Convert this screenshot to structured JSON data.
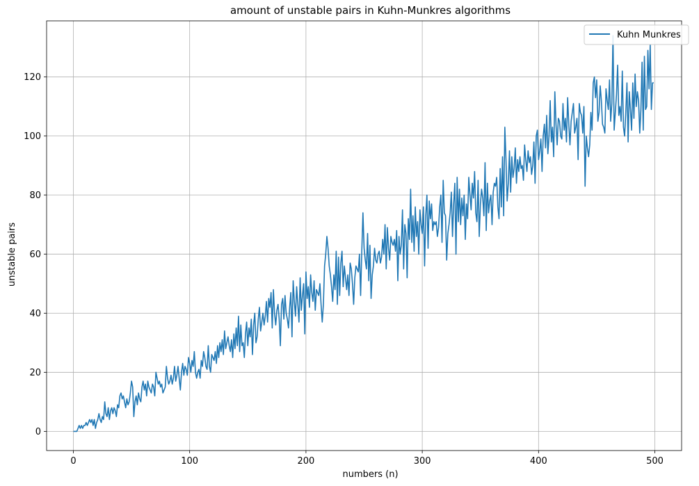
{
  "chart_data": {
    "type": "line",
    "title": "amount of unstable pairs in Kuhn-Munkres algorithms",
    "xlabel": "numbers (n)",
    "ylabel": "unstable pairs",
    "xlim": [
      -23,
      523
    ],
    "ylim": [
      -6.5,
      139
    ],
    "xticks": [
      0,
      100,
      200,
      300,
      400,
      500
    ],
    "yticks": [
      0,
      20,
      40,
      60,
      80,
      100,
      120
    ],
    "grid": true,
    "legend_position": "top-right",
    "series": [
      {
        "name": "Kuhn Munkres",
        "color": "#1f77b4",
        "x_start": 0,
        "x_step": 1,
        "values": [
          0,
          0,
          0,
          0,
          1,
          2,
          1,
          2,
          1,
          2,
          2,
          3,
          2,
          3,
          4,
          3,
          4,
          2,
          4,
          1,
          3,
          4,
          6,
          4,
          3,
          5,
          4,
          10,
          6,
          5,
          8,
          4,
          7,
          8,
          6,
          8,
          7,
          5,
          9,
          8,
          12,
          13,
          11,
          12,
          10,
          8,
          11,
          9,
          10,
          13,
          17,
          15,
          5,
          10,
          12,
          9,
          13,
          11,
          10,
          15,
          17,
          14,
          16,
          12,
          17,
          15,
          14,
          13,
          16,
          15,
          12,
          20,
          18,
          16,
          17,
          15,
          16,
          13,
          14,
          15,
          22,
          18,
          16,
          17,
          19,
          16,
          18,
          22,
          17,
          19,
          22,
          18,
          14,
          20,
          23,
          19,
          22,
          21,
          19,
          25,
          23,
          20,
          24,
          22,
          27,
          20,
          18,
          20,
          21,
          18,
          24,
          22,
          27,
          25,
          22,
          21,
          29,
          22,
          20,
          26,
          25,
          24,
          27,
          23,
          29,
          25,
          30,
          27,
          31,
          26,
          34,
          28,
          30,
          32,
          29,
          27,
          31,
          25,
          33,
          28,
          35,
          29,
          39,
          27,
          36,
          29,
          30,
          25,
          33,
          37,
          29,
          35,
          32,
          38,
          26,
          36,
          40,
          30,
          32,
          38,
          42,
          34,
          37,
          40,
          36,
          39,
          44,
          37,
          45,
          42,
          47,
          35,
          48,
          40,
          36,
          41,
          43,
          38,
          29,
          43,
          45,
          38,
          46,
          40,
          38,
          35,
          42,
          47,
          32,
          51,
          44,
          39,
          49,
          43,
          37,
          52,
          41,
          46,
          50,
          33,
          54,
          45,
          49,
          42,
          53,
          47,
          44,
          51,
          41,
          48,
          47,
          46,
          50,
          43,
          37,
          43,
          56,
          60,
          66,
          62,
          56,
          53,
          49,
          44,
          53,
          48,
          61,
          43,
          59,
          46,
          57,
          61,
          49,
          56,
          52,
          48,
          53,
          46,
          57,
          55,
          50,
          43,
          52,
          56,
          55,
          54,
          60,
          46,
          61,
          74,
          62,
          58,
          55,
          67,
          51,
          63,
          45,
          53,
          56,
          62,
          58,
          57,
          60,
          61,
          57,
          59,
          65,
          60,
          70,
          55,
          69,
          62,
          58,
          66,
          64,
          63,
          65,
          61,
          68,
          51,
          66,
          60,
          63,
          75,
          55,
          70,
          67,
          52,
          72,
          65,
          82,
          64,
          73,
          61,
          76,
          66,
          71,
          60,
          75,
          70,
          67,
          76,
          56,
          73,
          80,
          62,
          78,
          72,
          77,
          68,
          71,
          70,
          71,
          66,
          69,
          76,
          80,
          64,
          85,
          74,
          73,
          58,
          67,
          70,
          74,
          81,
          66,
          77,
          84,
          60,
          86,
          71,
          82,
          70,
          79,
          73,
          80,
          65,
          77,
          72,
          86,
          80,
          75,
          84,
          79,
          88,
          74,
          71,
          85,
          66,
          77,
          82,
          79,
          73,
          91,
          68,
          84,
          74,
          78,
          80,
          70,
          81,
          84,
          83,
          86,
          76,
          72,
          89,
          76,
          93,
          73,
          103,
          92,
          78,
          84,
          95,
          81,
          93,
          86,
          89,
          96,
          84,
          92,
          88,
          93,
          89,
          90,
          85,
          97,
          92,
          88,
          95,
          91,
          93,
          87,
          90,
          98,
          84,
          100,
          102,
          92,
          95,
          99,
          88,
          100,
          104,
          96,
          107,
          94,
          100,
          112,
          98,
          103,
          93,
          115,
          104,
          97,
          106,
          105,
          100,
          99,
          111,
          102,
          106,
          98,
          113,
          104,
          97,
          105,
          108,
          111,
          101,
          103,
          106,
          92,
          111,
          108,
          107,
          101,
          110,
          83,
          100,
          96,
          93,
          97,
          108,
          102,
          118,
          120,
          113,
          119,
          105,
          108,
          117,
          112,
          104,
          103,
          101,
          116,
          112,
          109,
          119,
          105,
          111,
          134,
          102,
          108,
          114,
          124,
          107,
          110,
          105,
          122,
          103,
          100,
          108,
          118,
          98,
          115,
          109,
          102,
          118,
          106,
          121,
          110,
          115,
          112,
          101,
          109,
          125,
          102,
          127,
          109,
          110,
          129,
          116,
          131,
          109,
          118,
          118
        ]
      }
    ]
  }
}
